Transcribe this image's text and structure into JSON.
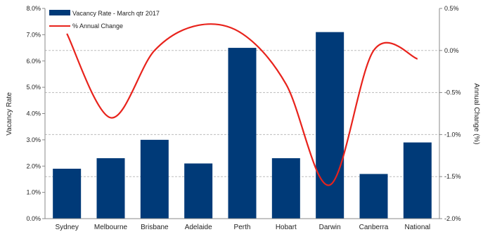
{
  "chart_data": {
    "type": "bar",
    "categories": [
      "Sydney",
      "Melbourne",
      "Brisbane",
      "Adelaide",
      "Perth",
      "Hobart",
      "Darwin",
      "Canberra",
      "National"
    ],
    "series": [
      {
        "name": "Vacancy Rate - March qtr 2017",
        "type": "bar",
        "axis": "left",
        "color": "#003a78",
        "values": [
          1.9,
          2.3,
          3.0,
          2.1,
          6.5,
          2.3,
          7.1,
          1.7,
          2.9
        ]
      },
      {
        "name": "% Annual Change",
        "type": "line",
        "axis": "right",
        "color": "#e8231c",
        "values": [
          0.2,
          -0.8,
          0.0,
          0.3,
          0.2,
          -0.4,
          -1.6,
          0.0,
          -0.1
        ]
      }
    ],
    "left_axis": {
      "label": "Vacancy Rate",
      "ylim": [
        0,
        8
      ],
      "ticks": [
        "0.0%",
        "1.0%",
        "2.0%",
        "3.0%",
        "4.0%",
        "5.0%",
        "6.0%",
        "7.0%",
        "8.0%"
      ]
    },
    "right_axis": {
      "label": "Annual Change (%)",
      "ylim": [
        -2.0,
        0.5
      ],
      "ticks": [
        "-2.0%",
        "-1.5%",
        "-1.0%",
        "-0.5%",
        "0.0%",
        "0.5%"
      ]
    },
    "grid": "horizontal dashed",
    "legend_position": "top-left"
  }
}
